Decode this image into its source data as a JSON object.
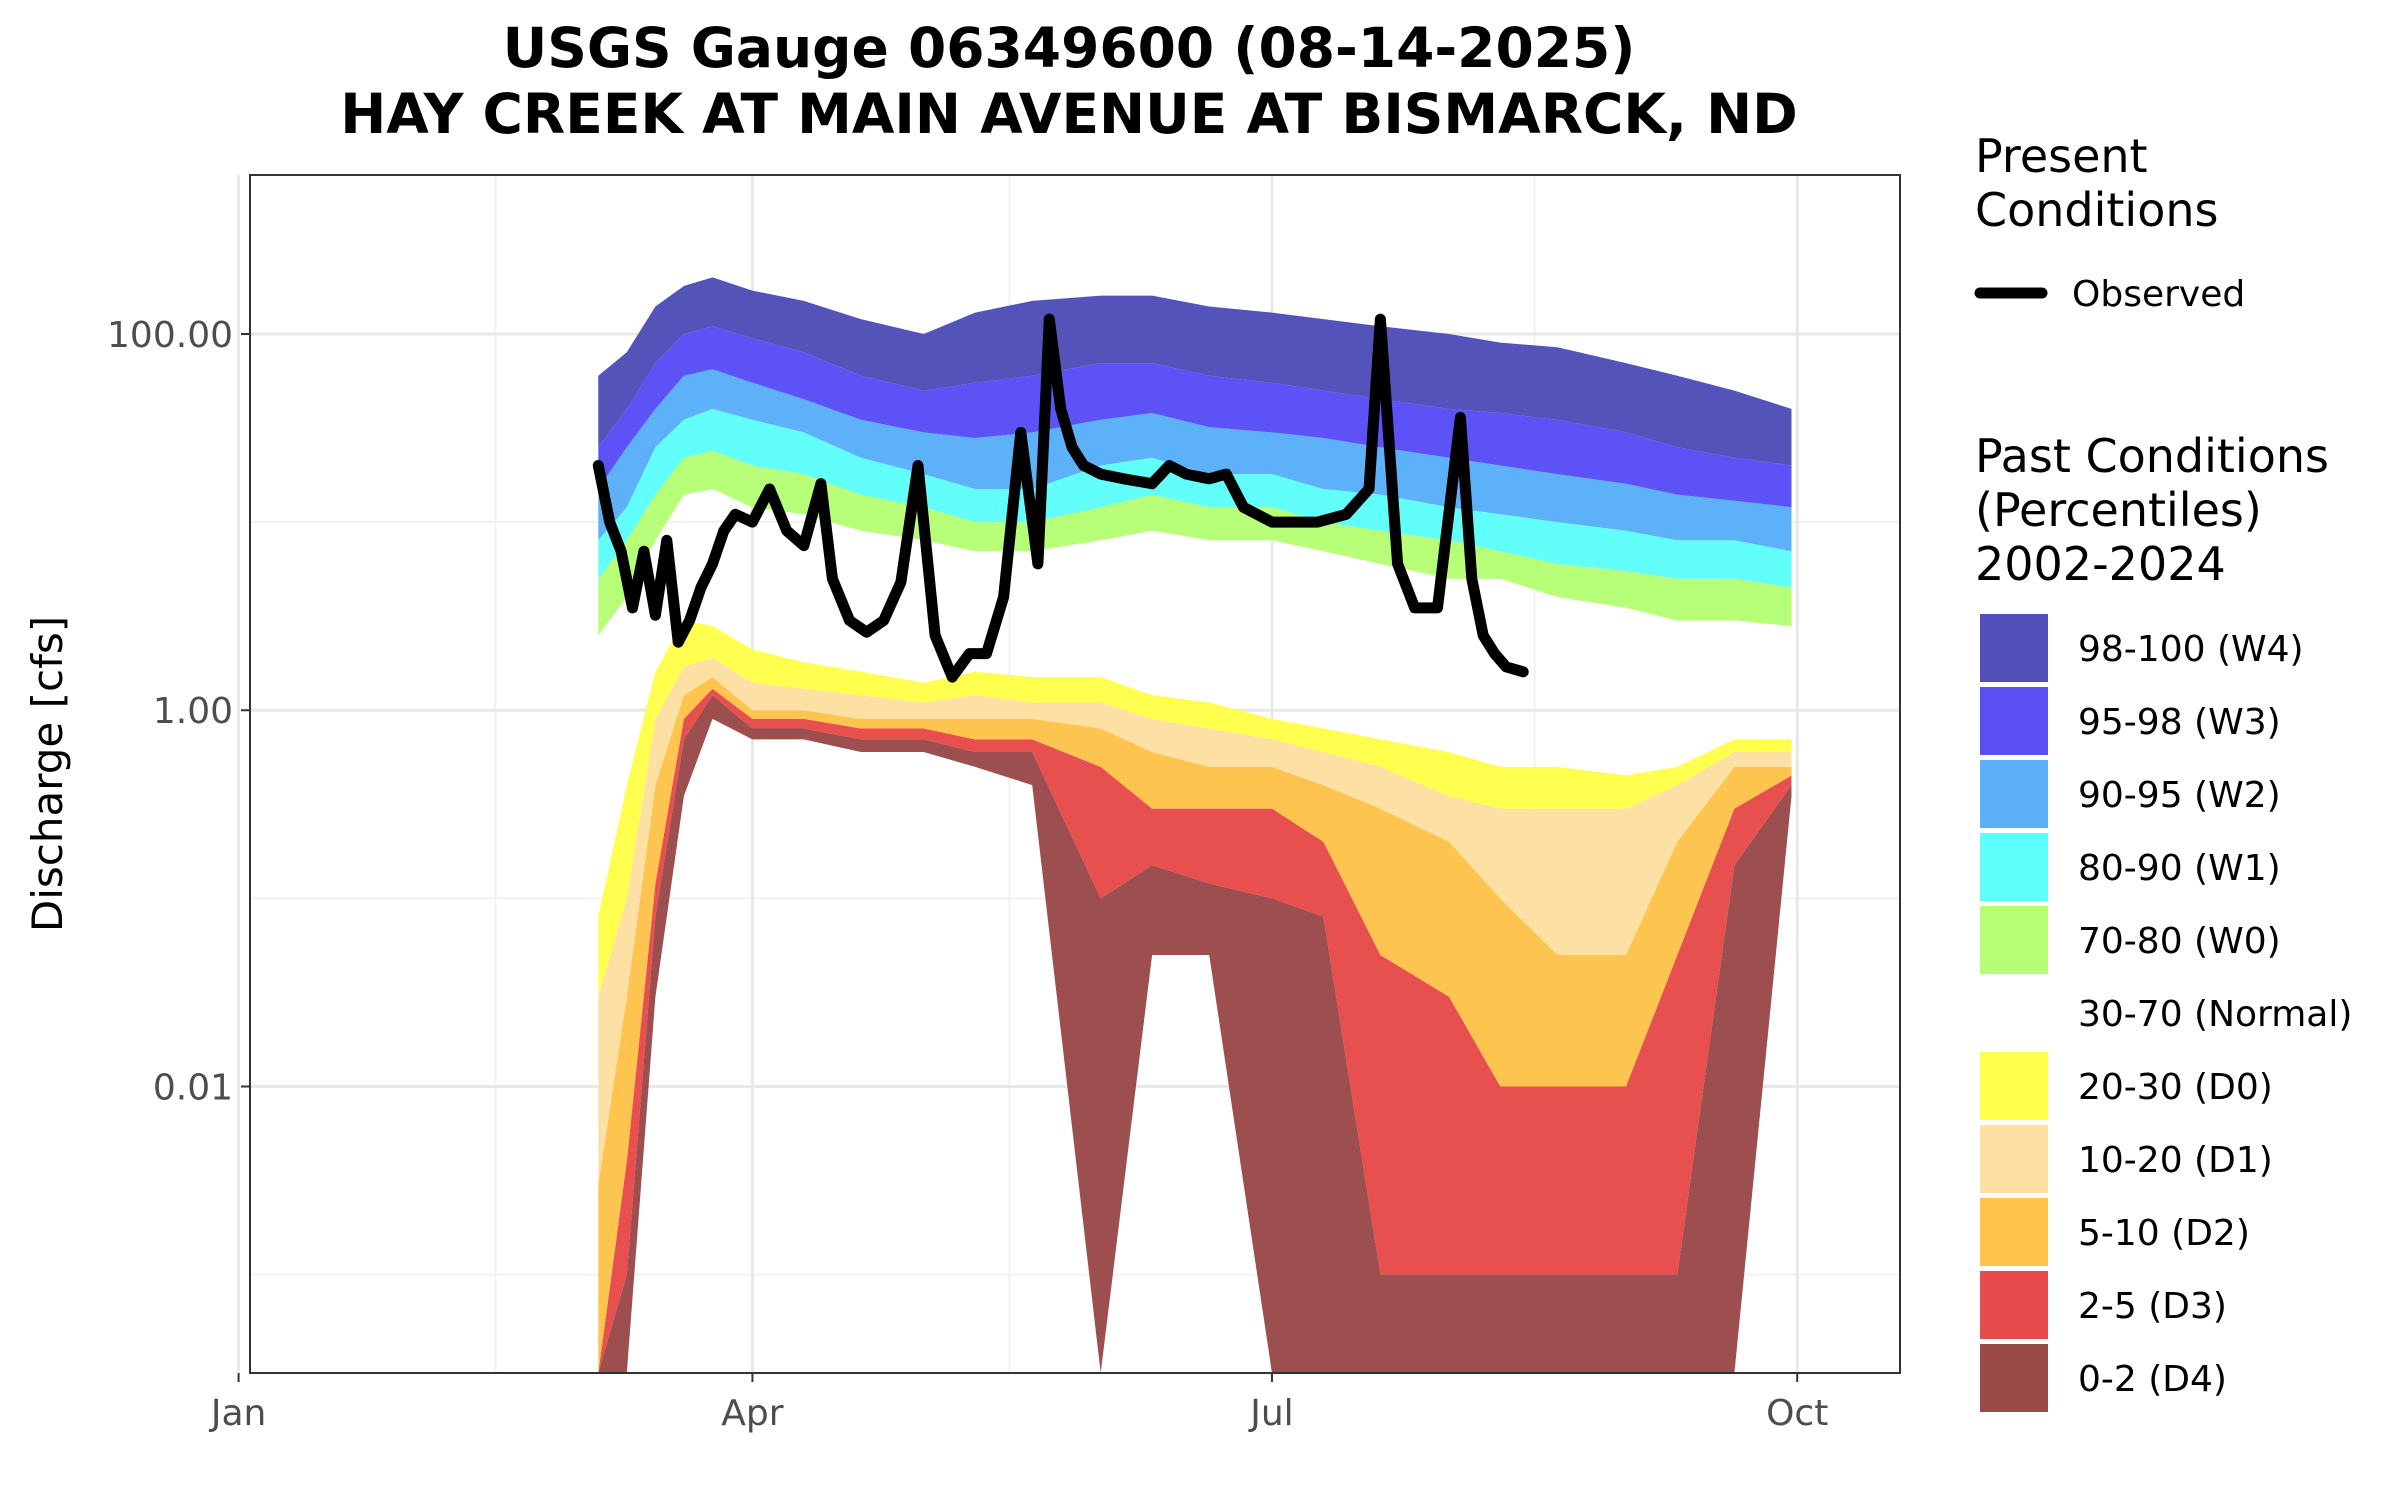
{
  "chart_data": {
    "type": "area",
    "title_line1": "USGS Gauge 06349600 (08-14-2025)",
    "title_line2": "HAY CREEK AT MAIN AVENUE AT BISMARCK, ND",
    "xlabel": "",
    "ylabel": "Discharge [cfs]",
    "y_scale": "log",
    "ylim": [
      0.0003,
      700
    ],
    "xlim": [
      "2025-01-03",
      "2025-10-19"
    ],
    "grid": true,
    "x_ticks": [
      {
        "date": "2025-01-01",
        "label": "Jan"
      },
      {
        "date": "2025-04-01",
        "label": "Apr"
      },
      {
        "date": "2025-07-01",
        "label": "Jul"
      },
      {
        "date": "2025-10-01",
        "label": "Oct"
      }
    ],
    "y_ticks": [
      {
        "value": 0.01,
        "label": "0.01"
      },
      {
        "value": 1,
        "label": "1.00"
      },
      {
        "value": 100,
        "label": "100.00"
      }
    ],
    "legend_present": {
      "title_line1": "Present",
      "title_line2": "Conditions",
      "observed_label": "Observed",
      "observed_color": "#000000"
    },
    "legend_past": {
      "title_line1": "Past Conditions",
      "title_line2": "(Percentiles)",
      "title_line3": "2002-2024",
      "bands": [
        {
          "label": "98-100 (W4)",
          "color": "#5050b8"
        },
        {
          "label": "95-98 (W3)",
          "color": "#5a4ff5"
        },
        {
          "label": "90-95 (W2)",
          "color": "#5aaff8"
        },
        {
          "label": "80-90 (W1)",
          "color": "#5ffffa"
        },
        {
          "label": "70-80 (W0)",
          "color": "#b6ff75"
        },
        {
          "label": "30-70 (Normal)",
          "color": "#ffffff"
        },
        {
          "label": "20-30 (D0)",
          "color": "#ffff4b"
        },
        {
          "label": "10-20 (D1)",
          "color": "#fde0a2"
        },
        {
          "label": "5-10 (D2)",
          "color": "#fec34d"
        },
        {
          "label": "2-5 (D3)",
          "color": "#e84b4b"
        },
        {
          "label": "0-2 (D4)",
          "color": "#9b4a4a"
        }
      ]
    },
    "percentile_series": {
      "dates": [
        "2025-03-05",
        "2025-03-10",
        "2025-03-15",
        "2025-03-20",
        "2025-03-25",
        "2025-04-01",
        "2025-04-10",
        "2025-04-20",
        "2025-05-01",
        "2025-05-10",
        "2025-05-20",
        "2025-06-01",
        "2025-06-10",
        "2025-06-20",
        "2025-07-01",
        "2025-07-10",
        "2025-07-20",
        "2025-08-01",
        "2025-08-10",
        "2025-08-20",
        "2025-09-01",
        "2025-09-10",
        "2025-09-20",
        "2025-09-30"
      ],
      "p0": [
        0.0003,
        0.0003,
        0.03,
        0.35,
        0.9,
        0.7,
        0.7,
        0.6,
        0.6,
        0.5,
        0.4,
        0.0003,
        0.05,
        0.05,
        0.0003,
        0.0003,
        0.0003,
        0.0003,
        0.0003,
        0.0003,
        0.0003,
        0.0003,
        0.0003,
        0.35
      ],
      "p2": [
        0.0003,
        0.001,
        0.08,
        0.7,
        1.2,
        0.8,
        0.8,
        0.7,
        0.7,
        0.6,
        0.6,
        0.1,
        0.15,
        0.12,
        0.1,
        0.08,
        0.001,
        0.001,
        0.001,
        0.001,
        0.001,
        0.001,
        0.15,
        0.4
      ],
      "p5": [
        0.0003,
        0.004,
        0.12,
        0.9,
        1.3,
        0.9,
        0.9,
        0.8,
        0.8,
        0.7,
        0.7,
        0.5,
        0.3,
        0.3,
        0.3,
        0.2,
        0.05,
        0.03,
        0.01,
        0.01,
        0.01,
        0.05,
        0.3,
        0.45
      ],
      "p10": [
        0.003,
        0.03,
        0.4,
        1.2,
        1.5,
        1.0,
        1.0,
        0.9,
        0.9,
        0.9,
        0.9,
        0.8,
        0.6,
        0.5,
        0.5,
        0.4,
        0.3,
        0.2,
        0.1,
        0.05,
        0.05,
        0.2,
        0.5,
        0.5
      ],
      "p20": [
        0.03,
        0.1,
        0.9,
        1.7,
        1.9,
        1.4,
        1.3,
        1.2,
        1.1,
        1.2,
        1.1,
        1.1,
        0.9,
        0.8,
        0.7,
        0.6,
        0.5,
        0.35,
        0.3,
        0.3,
        0.3,
        0.4,
        0.6,
        0.6
      ],
      "p30": [
        0.08,
        0.4,
        1.6,
        3.0,
        2.8,
        2.1,
        1.8,
        1.6,
        1.4,
        1.6,
        1.5,
        1.5,
        1.2,
        1.1,
        0.9,
        0.8,
        0.7,
        0.6,
        0.5,
        0.5,
        0.45,
        0.5,
        0.7,
        0.7
      ],
      "p70": [
        2.5,
        4,
        8,
        14,
        15,
        12,
        11,
        9,
        8,
        7,
        7,
        8,
        9,
        8,
        8,
        7,
        6,
        5,
        5,
        4,
        3.5,
        3,
        3,
        2.8
      ],
      "p80": [
        5,
        8,
        14,
        22,
        24,
        20,
        18,
        14,
        12,
        10,
        10,
        12,
        14,
        12,
        12,
        10,
        9,
        8,
        7,
        6,
        5.5,
        5,
        5,
        4.5
      ],
      "p90": [
        8,
        12,
        25,
        35,
        40,
        35,
        30,
        22,
        18,
        15,
        15,
        20,
        22,
        18,
        18,
        15,
        14,
        12,
        11,
        10,
        9,
        8,
        8,
        7
      ],
      "p95": [
        15,
        25,
        40,
        60,
        65,
        55,
        45,
        35,
        30,
        28,
        30,
        35,
        38,
        32,
        30,
        28,
        25,
        22,
        20,
        18,
        16,
        14,
        13,
        12
      ],
      "p98": [
        25,
        40,
        70,
        100,
        110,
        95,
        80,
        60,
        50,
        55,
        60,
        70,
        70,
        60,
        55,
        50,
        45,
        40,
        38,
        35,
        30,
        25,
        22,
        20
      ],
      "p100": [
        60,
        80,
        140,
        180,
        200,
        170,
        150,
        120,
        100,
        130,
        150,
        160,
        160,
        140,
        130,
        120,
        110,
        100,
        90,
        85,
        70,
        60,
        50,
        40
      ]
    },
    "observed": {
      "dates": [
        "2025-03-05",
        "2025-03-07",
        "2025-03-09",
        "2025-03-11",
        "2025-03-13",
        "2025-03-15",
        "2025-03-17",
        "2025-03-19",
        "2025-03-21",
        "2025-03-23",
        "2025-03-25",
        "2025-03-27",
        "2025-03-29",
        "2025-04-01",
        "2025-04-04",
        "2025-04-07",
        "2025-04-10",
        "2025-04-13",
        "2025-04-15",
        "2025-04-18",
        "2025-04-21",
        "2025-04-24",
        "2025-04-27",
        "2025-04-30",
        "2025-05-03",
        "2025-05-06",
        "2025-05-09",
        "2025-05-12",
        "2025-05-15",
        "2025-05-18",
        "2025-05-21",
        "2025-05-23",
        "2025-05-25",
        "2025-05-27",
        "2025-05-29",
        "2025-06-01",
        "2025-06-05",
        "2025-06-10",
        "2025-06-13",
        "2025-06-16",
        "2025-06-20",
        "2025-06-23",
        "2025-06-26",
        "2025-07-01",
        "2025-07-05",
        "2025-07-09",
        "2025-07-14",
        "2025-07-18",
        "2025-07-20",
        "2025-07-23",
        "2025-07-26",
        "2025-07-30",
        "2025-08-03",
        "2025-08-05",
        "2025-08-07",
        "2025-08-09",
        "2025-08-11",
        "2025-08-14"
      ],
      "values": [
        20,
        10,
        7,
        3.5,
        7,
        3.2,
        8,
        2.3,
        3,
        4.5,
        6,
        9,
        11,
        10,
        15,
        9,
        7.5,
        16,
        5,
        3,
        2.6,
        3.0,
        4.8,
        20,
        2.5,
        1.5,
        2.0,
        2.0,
        4,
        30,
        6,
        120,
        40,
        25,
        20,
        18,
        17,
        16,
        20,
        18,
        17,
        18,
        12,
        10,
        10,
        10,
        11,
        15,
        120,
        6,
        3.5,
        3.5,
        36,
        5,
        2.5,
        2.0,
        1.7,
        1.6
      ]
    }
  }
}
